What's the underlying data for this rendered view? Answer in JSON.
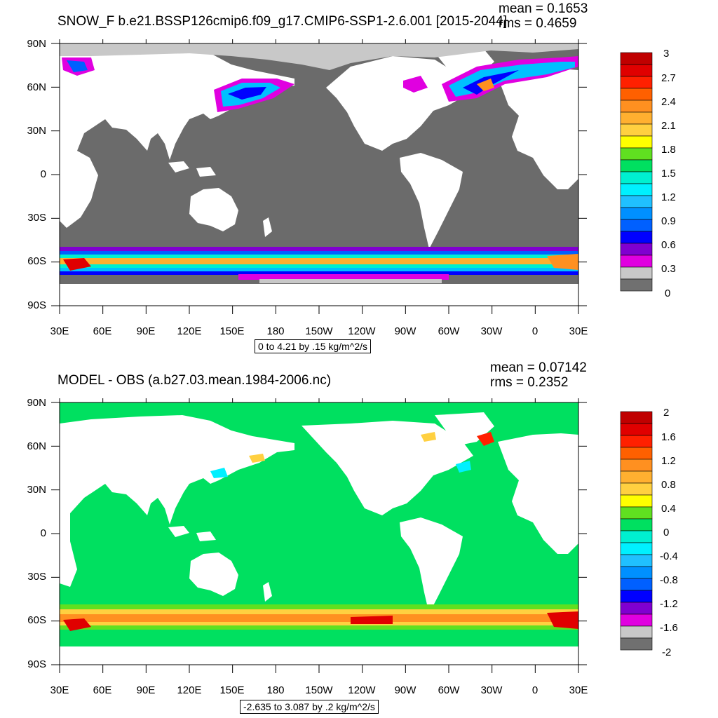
{
  "top": {
    "title": "SNOW_F b.e21.BSSP126cmip6.f09_g17.CMIP6-SSP1-2.6.001 [2015-2044]",
    "mean": "mean = 0.1653",
    "rms": "rms = 0.4659",
    "subtitle": "0 to 4.21 by .15 kg/m^2/s",
    "colorbar_labels": [
      "3",
      "2.7",
      "2.4",
      "2.1",
      "1.8",
      "1.5",
      "1.2",
      "0.9",
      "0.6",
      "0.3",
      "0"
    ],
    "colorbar_colors": [
      "#c00000",
      "#e00000",
      "#ff2000",
      "#ff6000",
      "#ff9020",
      "#ffb030",
      "#ffd040",
      "#ffff00",
      "#60e020",
      "#00e060",
      "#00f0d0",
      "#00f0ff",
      "#20c0ff",
      "#0090ff",
      "#0060ff",
      "#0000ff",
      "#8000d0",
      "#e000e0",
      "#c8c8c8",
      "#707070"
    ],
    "land_color": "#6b6b6b",
    "ocean_color": "#ffffff"
  },
  "bottom": {
    "title": "MODEL - OBS (a.b27.03.mean.1984-2006.nc)",
    "mean": "mean = 0.07142",
    "rms": "rms = 0.2352",
    "subtitle": "-2.635 to 3.087 by .2 kg/m^2/s",
    "colorbar_labels": [
      "2",
      "1.6",
      "1.2",
      "0.8",
      "0.4",
      "0",
      "-0.4",
      "-0.8",
      "-1.2",
      "-1.6",
      "-2"
    ],
    "colorbar_colors": [
      "#c00000",
      "#e00000",
      "#ff2000",
      "#ff6000",
      "#ff9020",
      "#ffb030",
      "#ffd040",
      "#ffff00",
      "#60e020",
      "#00e060",
      "#00f0d0",
      "#00f0ff",
      "#20c0ff",
      "#0090ff",
      "#0060ff",
      "#0000ff",
      "#8000d0",
      "#e000e0",
      "#c8c8c8",
      "#707070"
    ],
    "field_color": "#00e060",
    "ocean_color": "#ffffff"
  },
  "lat_labels": [
    "90N",
    "60N",
    "30N",
    "0",
    "30S",
    "60S",
    "90S"
  ],
  "lon_labels": [
    "30E",
    "60E",
    "90E",
    "120E",
    "150E",
    "180",
    "150W",
    "120W",
    "90W",
    "60W",
    "30W",
    "0",
    "30E"
  ]
}
